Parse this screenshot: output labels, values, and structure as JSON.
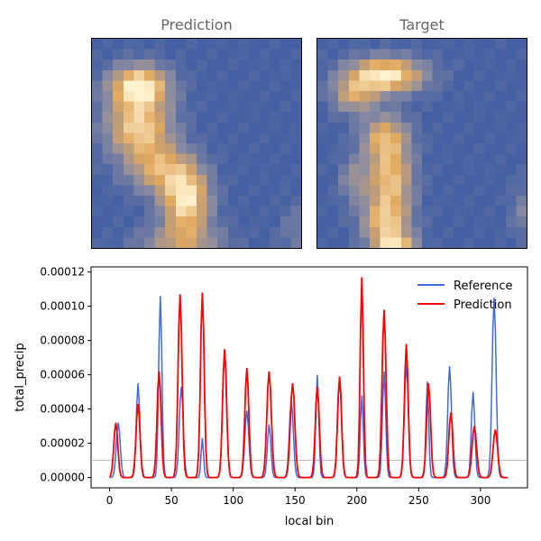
{
  "chart_data": [
    {
      "type": "heatmap",
      "title": "Prediction",
      "grid_size": 20,
      "colormap": [
        "#4661a3",
        "#8c8ca0",
        "#e0a85f",
        "#fff2cf"
      ],
      "blobs": [
        {
          "cx": 4,
          "cy": 4,
          "sx": 2.0,
          "sy": 1.4,
          "a": 1.0
        },
        {
          "cx": 4,
          "cy": 8,
          "sx": 2.2,
          "sy": 2.0,
          "a": 0.85
        },
        {
          "cx": 6,
          "cy": 12,
          "sx": 2.2,
          "sy": 1.6,
          "a": 0.6
        },
        {
          "cx": 8.5,
          "cy": 15,
          "sx": 1.6,
          "sy": 2.2,
          "a": 0.95
        },
        {
          "cx": 8,
          "cy": 19,
          "sx": 3.0,
          "sy": 1.2,
          "a": 0.45
        },
        {
          "cx": 19,
          "cy": 18,
          "sx": 1.2,
          "sy": 2.0,
          "a": 0.2
        }
      ]
    },
    {
      "type": "heatmap",
      "title": "Target",
      "grid_size": 20,
      "colormap": [
        "#4661a3",
        "#8c8ca0",
        "#e0a85f",
        "#fff2cf"
      ],
      "blobs": [
        {
          "cx": 6,
          "cy": 3,
          "sx": 2.6,
          "sy": 1.2,
          "a": 1.0
        },
        {
          "cx": 3,
          "cy": 5,
          "sx": 1.5,
          "sy": 1.2,
          "a": 0.55
        },
        {
          "cx": 6,
          "cy": 9,
          "sx": 1.6,
          "sy": 1.6,
          "a": 0.7
        },
        {
          "cx": 6.5,
          "cy": 13,
          "sx": 1.5,
          "sy": 2.0,
          "a": 0.75
        },
        {
          "cx": 6,
          "cy": 17,
          "sx": 1.6,
          "sy": 1.6,
          "a": 0.75
        },
        {
          "cx": 7,
          "cy": 20,
          "sx": 1.4,
          "sy": 1.2,
          "a": 1.0
        },
        {
          "cx": 3,
          "cy": 13,
          "sx": 1.0,
          "sy": 1.5,
          "a": 0.35
        },
        {
          "cx": 19,
          "cy": 16,
          "sx": 0.8,
          "sy": 1.8,
          "a": 0.25
        }
      ]
    },
    {
      "type": "line",
      "xlabel": "local bin",
      "ylabel": "total_precip",
      "xlim": [
        -15,
        338
      ],
      "ylim": [
        -6e-06,
        0.000123
      ],
      "xticks": [
        0,
        50,
        100,
        150,
        200,
        250,
        300
      ],
      "yticks": [
        "0.00000",
        "0.00002",
        "0.00004",
        "0.00006",
        "0.00008",
        "0.00010",
        "0.00012"
      ],
      "ytick_values": [
        0,
        2e-05,
        4e-05,
        6e-05,
        8e-05,
        0.0001,
        0.00012
      ],
      "hline": 1e-05,
      "legend_position": "top-right",
      "series": [
        {
          "name": "Reference",
          "color": "#4169e1",
          "peaks": [
            [
              7,
              3.2e-05,
              1.6
            ],
            [
              23,
              5.5e-05,
              1.4
            ],
            [
              41,
              0.000106,
              1.3
            ],
            [
              58,
              5.3e-05,
              1.6
            ],
            [
              75,
              2.3e-05,
              1.0
            ],
            [
              93,
              7.3e-05,
              1.6
            ],
            [
              111,
              3.9e-05,
              1.6
            ],
            [
              129,
              3.1e-05,
              1.4
            ],
            [
              147,
              4.5e-05,
              1.6
            ],
            [
              168,
              6e-05,
              1.2
            ],
            [
              186,
              5.8e-05,
              1.5
            ],
            [
              204,
              4.8e-05,
              1.2
            ],
            [
              222,
              6.2e-05,
              1.3
            ],
            [
              240,
              6.6e-05,
              1.6
            ],
            [
              257,
              5.6e-05,
              1.1
            ],
            [
              275,
              6.5e-05,
              1.5
            ],
            [
              294,
              5e-05,
              1.4
            ],
            [
              311,
              0.000105,
              1.6
            ]
          ]
        },
        {
          "name": "Prediction",
          "color": "#ff0000",
          "peaks": [
            [
              5,
              3.2e-05,
              1.6
            ],
            [
              23,
              4.3e-05,
              1.6
            ],
            [
              40,
              6.2e-05,
              1.6
            ],
            [
              57,
              0.000107,
              1.6
            ],
            [
              75,
              0.000108,
              1.5
            ],
            [
              93,
              7.5e-05,
              1.6
            ],
            [
              111,
              6.4e-05,
              1.6
            ],
            [
              129,
              6.2e-05,
              1.8
            ],
            [
              148,
              5.5e-05,
              1.8
            ],
            [
              168,
              5.3e-05,
              1.6
            ],
            [
              186,
              5.9e-05,
              1.6
            ],
            [
              204,
              0.000117,
              1.3
            ],
            [
              222,
              9.8e-05,
              1.6
            ],
            [
              240,
              7.8e-05,
              1.5
            ],
            [
              258,
              5.5e-05,
              1.6
            ],
            [
              276,
              3.8e-05,
              1.6
            ],
            [
              295,
              3e-05,
              1.8
            ],
            [
              312,
              2.8e-05,
              1.8
            ]
          ]
        }
      ]
    }
  ]
}
